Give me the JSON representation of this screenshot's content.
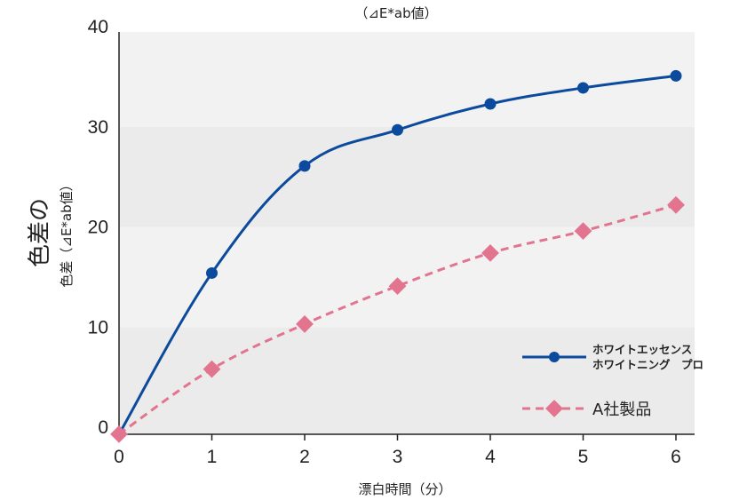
{
  "chart_data": {
    "type": "line",
    "top_note": "（⊿E*ab値）",
    "ylabel_main": "色差の",
    "ylabel_sub": "色差（⊿E*ab値）",
    "xlabel": "漂白時間（分）",
    "x": [
      0,
      1,
      2,
      3,
      4,
      5,
      6
    ],
    "xticks": [
      "0",
      "1",
      "2",
      "3",
      "4",
      "5",
      "6"
    ],
    "yticks": [
      "0",
      "10",
      "20",
      "30",
      "40"
    ],
    "xlim": [
      0,
      6.2
    ],
    "ylim": [
      -0.7,
      40
    ],
    "series": [
      {
        "name": "ホワイトエッセンス ホワイトニング プロ",
        "name_line1": "ホワイトエッセンス",
        "name_line2": "ホワイトニング　プロ",
        "color": "#0b4a9c",
        "marker": "circle",
        "dash": "solid",
        "values": [
          -0.7,
          15.4,
          26.1,
          29.7,
          32.3,
          33.9,
          35.1
        ]
      },
      {
        "name": "A社製品",
        "color": "#e3748f",
        "marker": "diamond",
        "dash": "dashed",
        "values": [
          -0.7,
          5.8,
          10.3,
          14.1,
          17.4,
          19.6,
          22.2
        ]
      }
    ],
    "grid": "horizontal bands",
    "legend": "bottom-right"
  }
}
